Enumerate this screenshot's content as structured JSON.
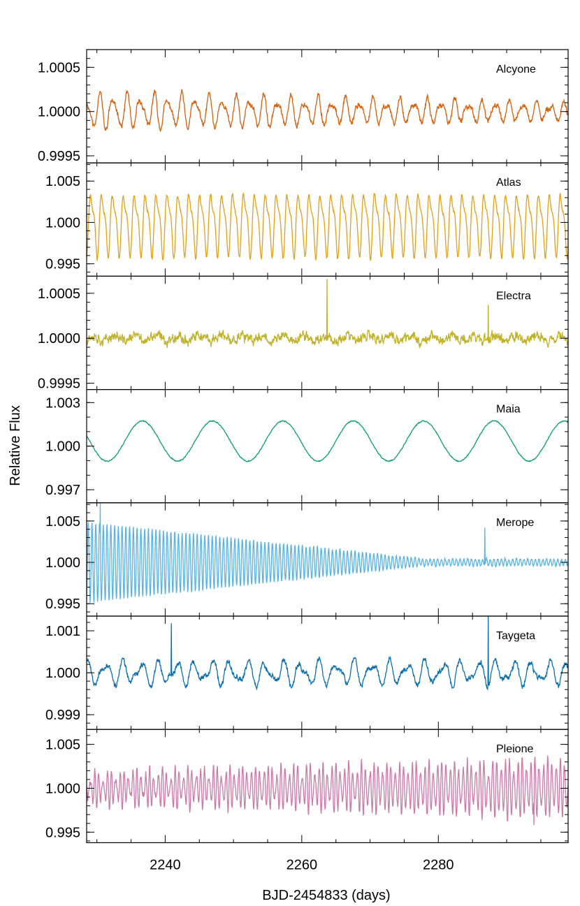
{
  "chart_data": {
    "type": "line",
    "xlabel": "BJD-2454833 (days)",
    "ylabel": "Relative Flux",
    "xlim": [
      2228.5,
      2299
    ],
    "x_major_ticks": [
      2240,
      2260,
      2280
    ],
    "x_minor_step": 5,
    "grid": false,
    "panels": [
      {
        "name": "Alcyone",
        "color": "#d5600f",
        "ylim": [
          0.99942,
          1.0007
        ],
        "yticks": [
          0.9995,
          1.0,
          1.0005
        ],
        "ytick_labels": [
          "0.9995",
          "1.0000",
          "1.0005"
        ],
        "yminor_step": 0.0001,
        "signal": {
          "baseline": 1.0,
          "noise": 4.5e-05,
          "seed": 11,
          "components": [
            {
              "amp": 0.00017,
              "period": 2.0,
              "phase": 0.3,
              "amp_slope": -1.2e-06
            },
            {
              "amp": 7e-05,
              "period": 1.33,
              "phase": 1.1,
              "amp_slope": -5e-07
            }
          ],
          "spikes": []
        }
      },
      {
        "name": "Atlas",
        "color": "#e2a018",
        "ylim": [
          0.9935,
          1.0072
        ],
        "yticks": [
          0.995,
          1.0,
          1.005
        ],
        "ytick_labels": [
          "0.995",
          "1.000",
          "1.005"
        ],
        "yminor_step": 0.001,
        "signal": {
          "baseline": 1.0,
          "noise": 0.00035,
          "seed": 23,
          "components": [
            {
              "amp": 0.0033,
              "period": 1.6,
              "phase": 0.0,
              "amp_slope": 0
            },
            {
              "amp": 0.0012,
              "period": 0.8,
              "phase": 0.7,
              "amp_slope": 0
            }
          ],
          "spikes": []
        }
      },
      {
        "name": "Electra",
        "color": "#c1b329",
        "ylim": [
          0.99943,
          1.00069
        ],
        "yticks": [
          0.9995,
          1.0,
          1.0005
        ],
        "ytick_labels": [
          "0.9995",
          "1.0000",
          "1.0005"
        ],
        "yminor_step": 0.0001,
        "signal": {
          "baseline": 1.0,
          "noise": 8.5e-05,
          "seed": 37,
          "components": [
            {
              "amp": 3e-05,
              "period": 3.1,
              "phase": 0.5,
              "amp_slope": 0
            }
          ],
          "spikes": [
            {
              "x": 2263.7,
              "value": 1.00066
            },
            {
              "x": 2287.3,
              "value": 1.00037
            }
          ]
        }
      },
      {
        "name": "Maia",
        "color": "#0d9e72",
        "ylim": [
          0.9961,
          1.0039
        ],
        "yticks": [
          0.997,
          1.0,
          1.003
        ],
        "ytick_labels": [
          "0.997",
          "1.000",
          "1.003"
        ],
        "yminor_step": 0.001,
        "signal": {
          "baseline": 1.00035,
          "noise": 5e-05,
          "seed": 41,
          "components": [
            {
              "amp": 0.00138,
              "period": 10.3,
              "phase": 0.62,
              "amp_slope": 0
            }
          ],
          "spikes": []
        }
      },
      {
        "name": "Merope",
        "color": "#57b2e7",
        "ylim": [
          0.9935,
          1.0072
        ],
        "yticks": [
          0.995,
          1.0,
          1.005
        ],
        "ytick_labels": [
          "0.995",
          "1.000",
          "1.005"
        ],
        "yminor_step": 0.001,
        "signal": {
          "baseline": 1.0,
          "noise": 0.00018,
          "seed": 53,
          "components": [
            {
              "amp": 0.0049,
              "period": 0.55,
              "phase": 0.0,
              "amp_slope": 0,
              "decay_to": 2278,
              "amp_floor": 0.0004
            }
          ],
          "spikes": [
            {
              "x": 2230.5,
              "value": 1.0072
            },
            {
              "x": 2286.8,
              "value": 1.0042
            }
          ]
        }
      },
      {
        "name": "Taygeta",
        "color": "#0b6fae",
        "ylim": [
          0.99865,
          1.00135
        ],
        "yticks": [
          0.999,
          1.0,
          1.001
        ],
        "ytick_labels": [
          "0.999",
          "1.000",
          "1.001"
        ],
        "yminor_step": 0.0002,
        "signal": {
          "baseline": 1.0,
          "noise": 9e-05,
          "seed": 67,
          "components": [
            {
              "amp": 0.00022,
              "period": 2.6,
              "phase": 0.4,
              "amp_slope": 0
            },
            {
              "amp": 0.00012,
              "period": 1.7,
              "phase": 1.9,
              "amp_slope": 0
            }
          ],
          "spikes": [
            {
              "x": 2240.9,
              "value": 1.00118
            },
            {
              "x": 2287.3,
              "value": 1.00135
            }
          ]
        }
      },
      {
        "name": "Pleione",
        "color": "#cc78aa",
        "ylim": [
          0.9938,
          1.0067
        ],
        "yticks": [
          0.995,
          1.0,
          1.005
        ],
        "ytick_labels": [
          "0.995",
          "1.000",
          "1.005"
        ],
        "yminor_step": 0.001,
        "signal": {
          "baseline": 1.0,
          "noise": 0.0006,
          "seed": 79,
          "components": [
            {
              "amp": 0.0014,
              "period": 0.62,
              "phase": 0.1,
              "amp_slope": 2e-05
            },
            {
              "amp": 0.0008,
              "period": 0.47,
              "phase": 0.9,
              "amp_slope": 0
            }
          ],
          "spikes": [
            {
              "x": 2294.0,
              "value": 0.9958
            }
          ]
        }
      }
    ]
  }
}
